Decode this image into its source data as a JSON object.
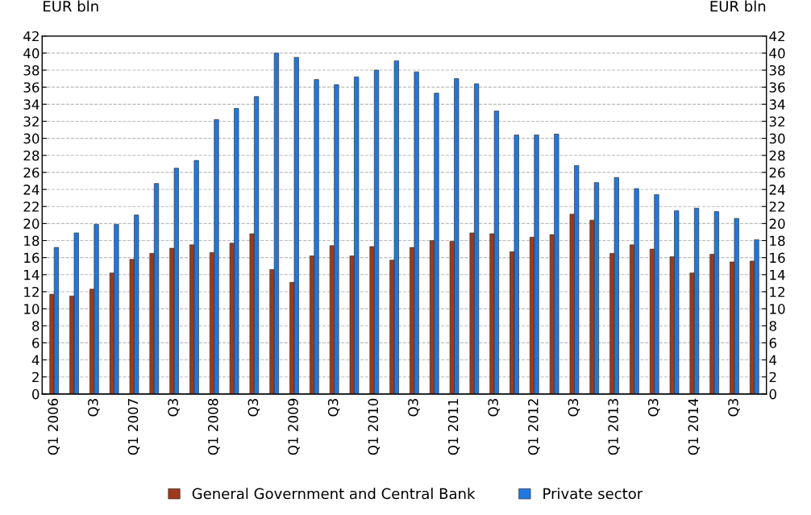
{
  "chart_data": {
    "type": "bar",
    "ylabel": "EUR bln",
    "y2label": "EUR bln",
    "categories": [
      "Q1 2006",
      null,
      "Q3",
      null,
      "Q1 2007",
      null,
      "Q3",
      null,
      "Q1 2008",
      null,
      "Q3",
      null,
      "Q1 2009",
      null,
      "Q3",
      null,
      "Q1 2010",
      null,
      "Q3",
      null,
      "Q1 2011",
      null,
      "Q3",
      null,
      "Q1 2012",
      null,
      "Q3",
      null,
      "Q1 2013",
      null,
      "Q3",
      null,
      "Q1 2014",
      null,
      "Q3",
      null
    ],
    "series": [
      {
        "name": "General Government and Central Bank",
        "color": "#9c3a1e",
        "values": [
          11.7,
          11.5,
          12.3,
          14.2,
          15.8,
          16.5,
          17.1,
          17.5,
          16.6,
          17.7,
          18.8,
          14.6,
          13.1,
          16.2,
          17.4,
          16.2,
          17.3,
          15.7,
          17.2,
          18.0,
          17.9,
          18.9,
          18.8,
          16.7,
          18.4,
          18.7,
          21.1,
          20.4,
          16.5,
          17.5,
          17.0,
          16.1,
          14.2,
          16.4,
          15.5,
          15.6
        ]
      },
      {
        "name": "Private sector",
        "color": "#1f78e0",
        "values": [
          17.2,
          18.9,
          19.9,
          19.9,
          21.0,
          24.7,
          26.5,
          27.4,
          32.2,
          33.5,
          34.9,
          40.0,
          39.5,
          36.9,
          36.3,
          37.2,
          38.0,
          39.1,
          37.8,
          35.3,
          37.0,
          36.4,
          33.2,
          30.4,
          30.4,
          30.5,
          26.8,
          24.8,
          25.4,
          24.1,
          23.4,
          21.5,
          21.8,
          21.4,
          20.6,
          18.1
        ]
      }
    ],
    "ylim": [
      0,
      42
    ],
    "yticks": [
      0,
      2,
      4,
      6,
      8,
      10,
      12,
      14,
      16,
      18,
      20,
      22,
      24,
      26,
      28,
      30,
      32,
      34,
      36,
      38,
      40,
      42
    ],
    "y2lim": [
      0,
      42
    ],
    "y2ticks": [
      0,
      2,
      4,
      6,
      8,
      10,
      12,
      14,
      16,
      18,
      20,
      22,
      24,
      26,
      28,
      30,
      32,
      34,
      36,
      38,
      40,
      42
    ],
    "grid": "y",
    "legend": "bottom"
  }
}
